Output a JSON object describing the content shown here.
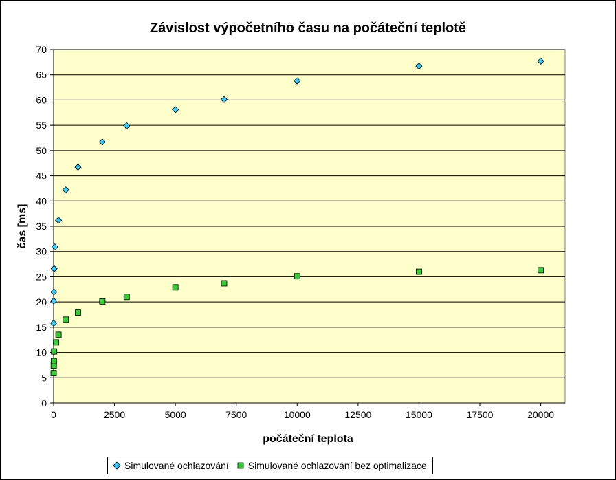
{
  "chart_data": {
    "type": "scatter",
    "title": "Závislost výpočetního času na počáteční teplotě",
    "xlabel": "počáteční teplota",
    "ylabel": "čas [ms]",
    "xlim": [
      0,
      21000
    ],
    "ylim": [
      0,
      70
    ],
    "xticks": [
      0,
      2500,
      5000,
      7500,
      10000,
      12500,
      15000,
      17500,
      20000
    ],
    "yticks": [
      0,
      5,
      10,
      15,
      20,
      25,
      30,
      35,
      40,
      45,
      50,
      55,
      60,
      65,
      70
    ],
    "grid": "horizontal",
    "plot_background": "#FFFFCC",
    "legend_position": "bottom",
    "series": [
      {
        "name": "Simulované ochlazování",
        "marker": "diamond",
        "color": "#33CCFF",
        "points": [
          [
            1,
            15.8
          ],
          [
            5,
            20.2
          ],
          [
            10,
            22.0
          ],
          [
            20,
            26.6
          ],
          [
            50,
            30.9
          ],
          [
            200,
            36.2
          ],
          [
            500,
            42.2
          ],
          [
            1000,
            46.7
          ],
          [
            2000,
            51.7
          ],
          [
            3000,
            54.9
          ],
          [
            5000,
            58.1
          ],
          [
            7000,
            60.1
          ],
          [
            10000,
            63.8
          ],
          [
            15000,
            66.7
          ],
          [
            20000,
            67.7
          ]
        ]
      },
      {
        "name": "Simulované ochlazování bez optimalizace",
        "marker": "square",
        "color": "#33CC33",
        "points": [
          [
            1,
            5.9
          ],
          [
            5,
            7.4
          ],
          [
            10,
            8.3
          ],
          [
            20,
            10.2
          ],
          [
            100,
            12.0
          ],
          [
            200,
            13.5
          ],
          [
            500,
            16.5
          ],
          [
            1000,
            17.9
          ],
          [
            2000,
            20.1
          ],
          [
            3000,
            21.0
          ],
          [
            5000,
            22.9
          ],
          [
            7000,
            23.7
          ],
          [
            10000,
            25.1
          ],
          [
            15000,
            26.0
          ],
          [
            20000,
            26.3
          ]
        ]
      }
    ]
  }
}
